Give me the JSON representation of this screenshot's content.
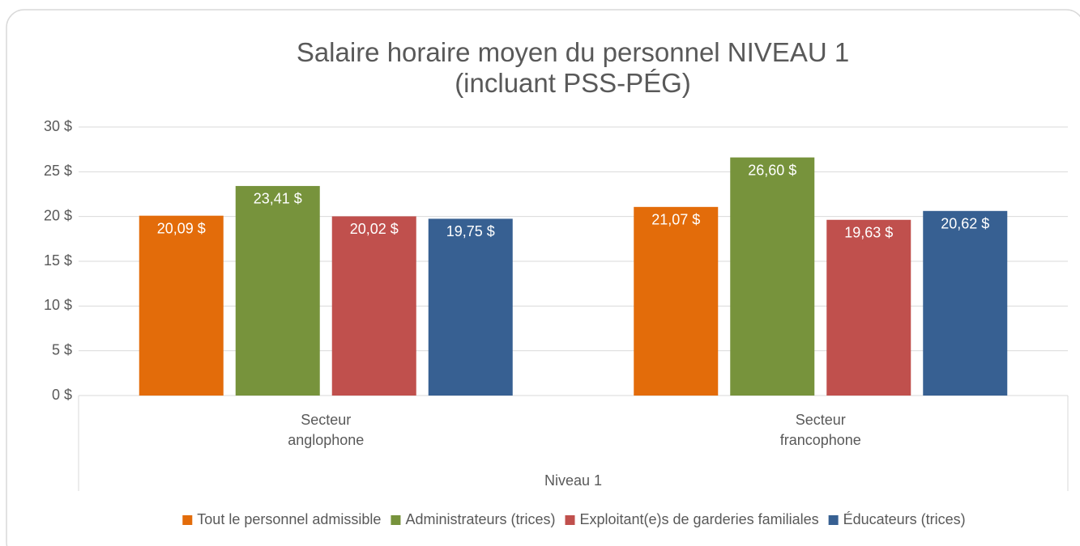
{
  "chart_data": {
    "type": "bar",
    "title": "Salaire horaire moyen du personnel NIVEAU 1\n(incluant PSS-PÉG)",
    "categories": [
      "Secteur\nanglophone",
      "Secteur\nfrancophone"
    ],
    "group_label": "Niveau 1",
    "series": [
      {
        "name": "Tout le personnel admissible",
        "color": "#e36c0a",
        "values": [
          20.09,
          21.07
        ],
        "value_labels": [
          "20,09 $",
          "21,07 $"
        ]
      },
      {
        "name": "Administrateurs (trices)",
        "color": "#77933c",
        "values": [
          23.41,
          26.6
        ],
        "value_labels": [
          "23,41 $",
          "26,60 $"
        ]
      },
      {
        "name": "Exploitant(e)s de garderies familiales",
        "color": "#c0504d",
        "values": [
          20.02,
          19.63
        ],
        "value_labels": [
          "20,02 $",
          "19,63 $"
        ]
      },
      {
        "name": "Éducateurs (trices)",
        "color": "#376092",
        "values": [
          19.75,
          20.62
        ],
        "value_labels": [
          "19,75 $",
          "20,62 $"
        ]
      }
    ],
    "ylim": [
      0,
      30
    ],
    "yticks": [
      {
        "value": 0,
        "label": "0 $"
      },
      {
        "value": 5,
        "label": "5 $"
      },
      {
        "value": 10,
        "label": "10 $"
      },
      {
        "value": 15,
        "label": "15 $"
      },
      {
        "value": 20,
        "label": "20 $"
      },
      {
        "value": 25,
        "label": "25 $"
      },
      {
        "value": 30,
        "label": "30 $"
      }
    ],
    "grid": true,
    "legend": "bottom"
  }
}
